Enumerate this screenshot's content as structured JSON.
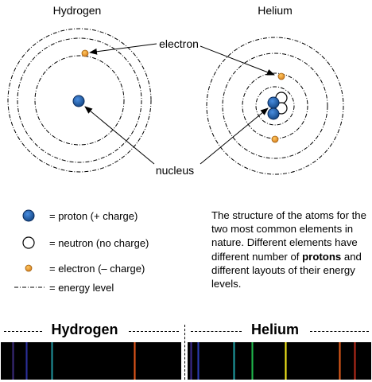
{
  "atoms": {
    "hydrogen": {
      "title": "Hydrogen"
    },
    "helium": {
      "title": "Helium"
    }
  },
  "callouts": {
    "electron": "electron",
    "nucleus": "nucleus"
  },
  "legend": {
    "proton": "= proton (+ charge)",
    "neutron": "= neutron (no charge)",
    "electron": "= electron (– charge)",
    "energy_level": "= energy level"
  },
  "description": {
    "part1": "The structure of the atoms for the two most common elements in nature. Different elements have different number of ",
    "bold": "protons",
    "part2": " and different layouts of their energy levels."
  },
  "spectra": {
    "hydrogen": {
      "label": "Hydrogen",
      "lines": [
        {
          "color": "#3a2a7a"
        },
        {
          "color": "#2b2f9a"
        },
        {
          "color": "#1e8f98"
        },
        {
          "color": "#e0551a"
        }
      ]
    },
    "helium": {
      "label": "Helium",
      "lines": [
        {
          "color": "#3b2a8c"
        },
        {
          "color": "#2a3ab0"
        },
        {
          "color": "#1e9aa0"
        },
        {
          "color": "#1fb54a"
        },
        {
          "color": "#f2e51a"
        },
        {
          "color": "#e05a1a"
        },
        {
          "color": "#b52a1a"
        }
      ]
    }
  },
  "colors": {
    "proton": "#1f5fa8",
    "electron": "#f0a030",
    "neutron": "#ffffff"
  }
}
